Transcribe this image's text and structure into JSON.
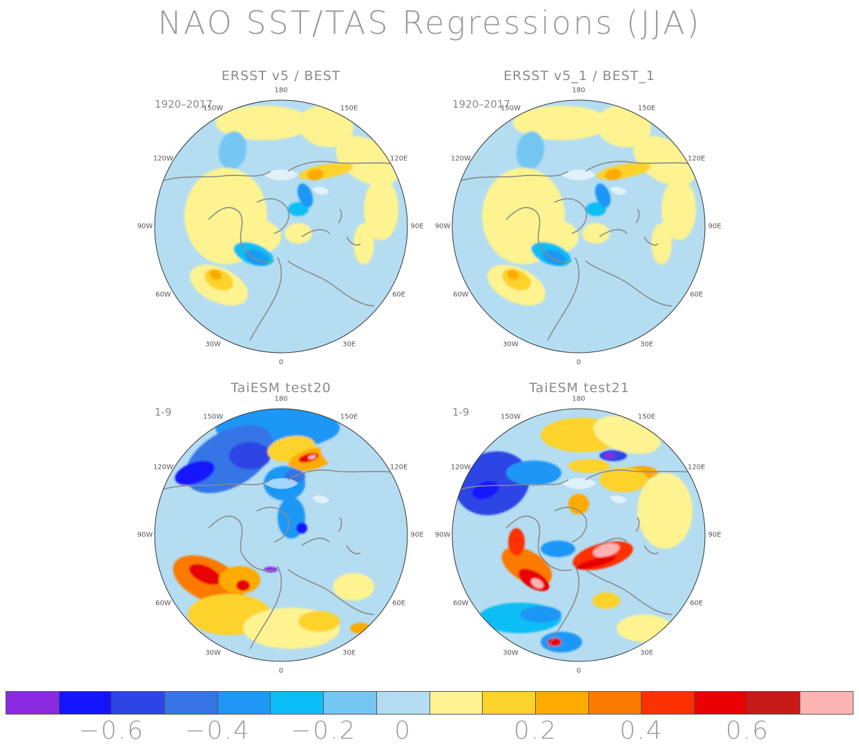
{
  "title": "NAO SST/TAS Regressions (JJA)",
  "colors": {
    "ocean_zero": "#b4ddf2",
    "warm_zero": "#fdf390",
    "coast": "#8a8a8a",
    "land_mask": "#ffffff"
  },
  "panels": [
    {
      "id": "p1",
      "title": "ERSST v5 / BEST",
      "period": "1920–2017",
      "pattern": "obs"
    },
    {
      "id": "p2",
      "title": "ERSST v5_1 / BEST_1",
      "period": "1920–2017",
      "pattern": "obs"
    },
    {
      "id": "p3",
      "title": "TaiESM test20",
      "period": "1-9",
      "pattern": "m20"
    },
    {
      "id": "p4",
      "title": "TaiESM test21",
      "period": "1-9",
      "pattern": "m21"
    }
  ],
  "longitude_labels": {
    "l180": "180",
    "l150e": "150E",
    "l120e": "120E",
    "l90e": "90E",
    "l60e": "60E",
    "l30e": "30E",
    "l0": "0",
    "l30w": "30W",
    "l60w": "60W",
    "l90w": "90W",
    "l120w": "120W",
    "l150w": "150W"
  },
  "colorbar": {
    "colors": [
      "#8a2be2",
      "#1414ff",
      "#2d45e6",
      "#3575e6",
      "#1f97f5",
      "#0bbef5",
      "#74c7f2",
      "#b4ddf2",
      "#fdf390",
      "#fdd22b",
      "#fdab00",
      "#fd7a00",
      "#fd3000",
      "#e80000",
      "#c81919",
      "#ffb4b4"
    ],
    "labels": [
      "−0.6",
      "−0.4",
      "−0.2",
      "0",
      "0.2",
      "0.4",
      "0.6"
    ]
  }
}
